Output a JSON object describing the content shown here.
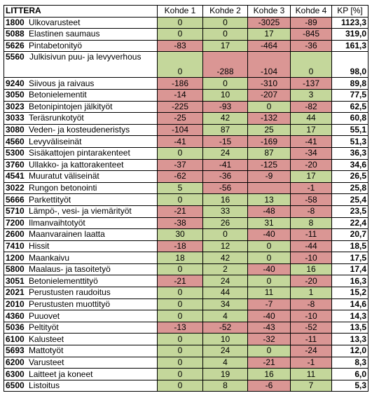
{
  "header": {
    "littera": "LITTERA",
    "kohde1": "Kohde 1",
    "kohde2": "Kohde 2",
    "kohde3": "Kohde 3",
    "kohde4": "Kohde 4",
    "kp": "KP [%]"
  },
  "colors": {
    "positive": "#c4d79b",
    "negative": "#da9694"
  },
  "rows": [
    {
      "code": "1800",
      "name": "Ulkovarusteet",
      "k": [
        "0",
        "0",
        "-3025",
        "-89"
      ],
      "kp": "1123,3"
    },
    {
      "code": "5088",
      "name": "Elastinen saumaus",
      "k": [
        "0",
        "0",
        "17",
        "-845"
      ],
      "kp": "319,0"
    },
    {
      "code": "5626",
      "name": "Pintabetonityö",
      "k": [
        "-83",
        "17",
        "-464",
        "-36"
      ],
      "kp": "161,3"
    },
    {
      "code": "5560",
      "name": "Julkisivun puu- ja levyverhous",
      "k": [
        "0",
        "-288",
        "-104",
        "0"
      ],
      "kp": "98,0"
    },
    {
      "code": "9240",
      "name": "Siivous ja raivaus",
      "k": [
        "-186",
        "0",
        "-310",
        "-137"
      ],
      "kp": "89,8"
    },
    {
      "code": "3050",
      "name": "Betonielementit",
      "k": [
        "-14",
        "10",
        "-207",
        "3"
      ],
      "kp": "77,5"
    },
    {
      "code": "3023",
      "name": "Betonipintojen jälkityöt",
      "k": [
        "-225",
        "-93",
        "0",
        "-82"
      ],
      "kp": "62,5"
    },
    {
      "code": "3033",
      "name": "Teräsrunkotyöt",
      "k": [
        "-25",
        "42",
        "-132",
        "44"
      ],
      "kp": "60,8"
    },
    {
      "code": "3080",
      "name": "Veden- ja kosteudeneristys",
      "k": [
        "-104",
        "87",
        "25",
        "17"
      ],
      "kp": "55,1"
    },
    {
      "code": "4560",
      "name": "Levyväliseinät",
      "k": [
        "-41",
        "-15",
        "-169",
        "-41"
      ],
      "kp": "51,3"
    },
    {
      "code": "5300",
      "name": "Sisäkattojen pintarakenteet",
      "k": [
        "0",
        "24",
        "87",
        "-34"
      ],
      "kp": "36,3"
    },
    {
      "code": "3760",
      "name": "Ullakko- ja kattorakenteet",
      "k": [
        "-37",
        "-41",
        "-125",
        "-20"
      ],
      "kp": "34,6"
    },
    {
      "code": "4541",
      "name": "Muuratut väliseinät",
      "k": [
        "-62",
        "-36",
        "-9",
        "17"
      ],
      "kp": "26,5"
    },
    {
      "code": "3022",
      "name": "Rungon betonointi",
      "k": [
        "5",
        "-56",
        "",
        "-1"
      ],
      "kp": "25,8"
    },
    {
      "code": "5666",
      "name": "Parkettityöt",
      "k": [
        "0",
        "16",
        "13",
        "-58"
      ],
      "kp": "25,4"
    },
    {
      "code": "5710",
      "name": "Lämpö-, vesi- ja viemärityöt",
      "k": [
        "-21",
        "33",
        "-48",
        "-8"
      ],
      "kp": "23,5"
    },
    {
      "code": "7200",
      "name": "Ilmanvaihtotyöt",
      "k": [
        "-38",
        "26",
        "31",
        "8"
      ],
      "kp": "22,4"
    },
    {
      "code": "2600",
      "name": "Maanvarainen laatta",
      "k": [
        "30",
        "0",
        "-40",
        "-11"
      ],
      "kp": "20,7"
    },
    {
      "code": "7410",
      "name": "Hissit",
      "k": [
        "-18",
        "12",
        "0",
        "-44"
      ],
      "kp": "18,5"
    },
    {
      "code": "1200",
      "name": "Maankaivu",
      "k": [
        "18",
        "42",
        "0",
        "-10"
      ],
      "kp": "17,5"
    },
    {
      "code": "5800",
      "name": "Maalaus- ja tasoitetyö",
      "k": [
        "0",
        "2",
        "-40",
        "16"
      ],
      "kp": "17,4"
    },
    {
      "code": "3051",
      "name": "Betonielementtityö",
      "k": [
        "-21",
        "24",
        "0",
        "-20"
      ],
      "kp": "16,3"
    },
    {
      "code": "2021",
      "name": "Perustusten raudoitus",
      "k": [
        "0",
        "44",
        "11",
        "1"
      ],
      "kp": "15,2"
    },
    {
      "code": "2010",
      "name": "Perustusten muottityö",
      "k": [
        "0",
        "34",
        "-7",
        "-8"
      ],
      "kp": "14,6"
    },
    {
      "code": "4360",
      "name": "Puuovet",
      "k": [
        "0",
        "4",
        "-40",
        "-10"
      ],
      "kp": "14,3"
    },
    {
      "code": "5036",
      "name": "Peltityöt",
      "k": [
        "-13",
        "-52",
        "-43",
        "-52"
      ],
      "kp": "13,5"
    },
    {
      "code": "6100",
      "name": "Kalusteet",
      "k": [
        "0",
        "10",
        "-32",
        "-11"
      ],
      "kp": "13,3"
    },
    {
      "code": "5693",
      "name": "Mattotyöt",
      "k": [
        "0",
        "24",
        "0",
        "-24"
      ],
      "kp": "12,0"
    },
    {
      "code": "6200",
      "name": "Varusteet",
      "k": [
        "0",
        "4",
        "-21",
        "-1"
      ],
      "kp": "8,3"
    },
    {
      "code": "6300",
      "name": "Laitteet ja koneet",
      "k": [
        "0",
        "19",
        "16",
        "11"
      ],
      "kp": "6,0"
    },
    {
      "code": "6500",
      "name": "Listoitus",
      "k": [
        "0",
        "8",
        "-6",
        "7"
      ],
      "kp": "5,3"
    }
  ]
}
